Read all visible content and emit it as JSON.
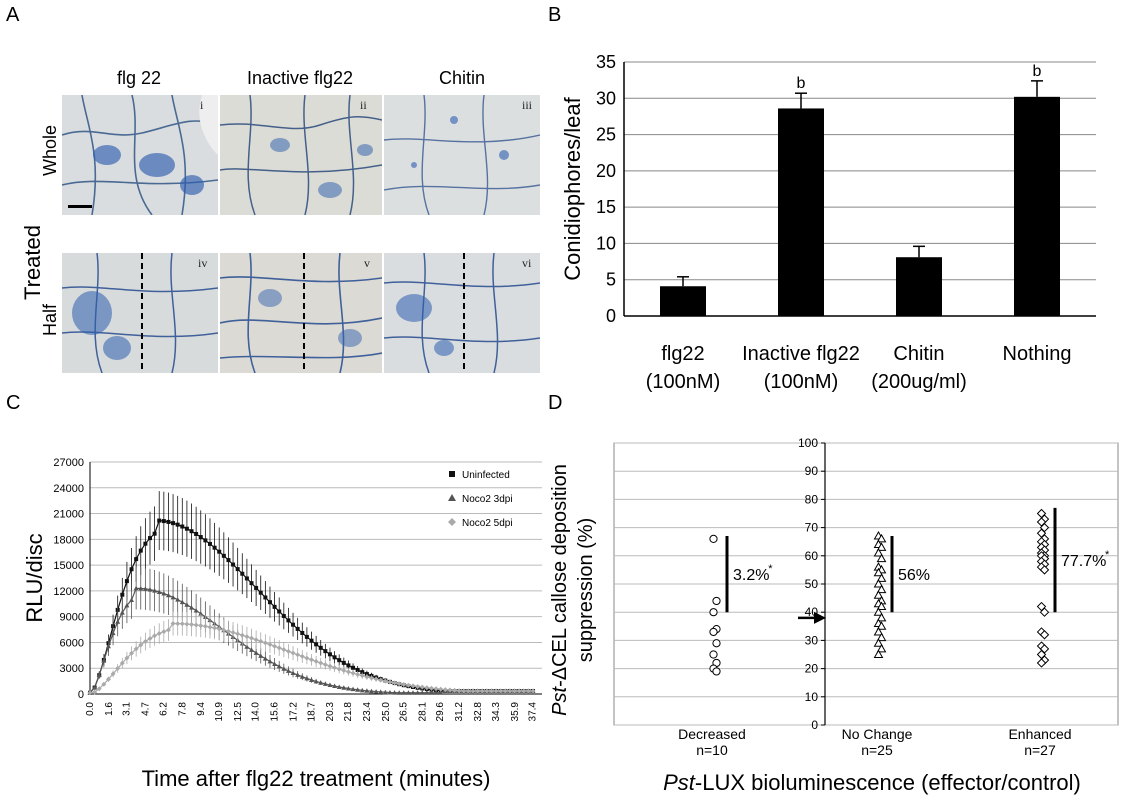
{
  "panel_a": {
    "label": "A",
    "row_group_label": "Treated",
    "rows": [
      {
        "label": "Whole",
        "images": [
          {
            "numeral": "i"
          },
          {
            "numeral": "ii"
          },
          {
            "numeral": "iii"
          }
        ]
      },
      {
        "label": "Half",
        "images": [
          {
            "numeral": "iv"
          },
          {
            "numeral": "v"
          },
          {
            "numeral": "vi"
          }
        ]
      }
    ],
    "columns": [
      "flg 22",
      "Inactive flg22",
      "Chitin"
    ]
  },
  "panel_b": {
    "label": "B",
    "chart_data": {
      "type": "bar",
      "ylabel": "Conidiophores/leaf",
      "ylim": [
        0,
        35
      ],
      "yticks": [
        0,
        5,
        10,
        15,
        20,
        25,
        30,
        35
      ],
      "categories": [
        "flg22\n(100nM)",
        "Inactive flg22\n(100nM)",
        "Chitin\n(200ug/ml)",
        "Nothing"
      ],
      "category_lines": [
        [
          "flg22",
          "(100nM)"
        ],
        [
          "Inactive flg22",
          "(100nM)"
        ],
        [
          "Chitin",
          "(200ug/ml)"
        ],
        [
          "Nothing",
          ""
        ]
      ],
      "values": [
        4.1,
        28.6,
        8.1,
        30.2
      ],
      "errors": [
        1.3,
        2.1,
        1.5,
        2.2
      ],
      "annotations": [
        "",
        "b",
        "",
        "b"
      ],
      "grid": true
    }
  },
  "panel_c": {
    "label": "C",
    "chart_data": {
      "type": "line",
      "xlabel": "Time after flg22 treatment (minutes)",
      "ylabel": "RLU/disc",
      "ylim": [
        0,
        27000
      ],
      "yticks": [
        0,
        3000,
        6000,
        9000,
        12000,
        15000,
        18000,
        21000,
        24000,
        27000
      ],
      "xticks": [
        "0.0",
        "1.6",
        "3.1",
        "4.7",
        "6.2",
        "7.8",
        "9.4",
        "10.9",
        "12.5",
        "14.0",
        "15.6",
        "17.2",
        "18.7",
        "20.3",
        "21.8",
        "23.4",
        "25.0",
        "26.5",
        "28.1",
        "29.6",
        "31.2",
        "32.8",
        "34.3",
        "35.9",
        "37.4"
      ],
      "grid": true,
      "legend_position": "top-right",
      "series": [
        {
          "name": "Uninfected",
          "color": "#111111",
          "marker": "square",
          "peak": 20200,
          "peak_time": 5.5,
          "err_frac": 0.17
        },
        {
          "name": "Noco2 3dpi",
          "color": "#555555",
          "marker": "triangle",
          "peak": 12300,
          "peak_time": 3.9,
          "err_frac": 0.2
        },
        {
          "name": "Noco2 5dpi",
          "color": "#aaaaaa",
          "marker": "diamond",
          "peak": 8200,
          "peak_time": 7.0,
          "err_frac": 0.17
        }
      ]
    }
  },
  "panel_d": {
    "label": "D",
    "chart_data": {
      "type": "scatter",
      "ylabel": "Pst-ΔCEL callose deposition suppression (%)",
      "ylabel_parts": [
        "Pst",
        "-ΔCEL callose deposition",
        "suppression (%)"
      ],
      "xlabel_parts": [
        "Pst",
        "-LUX bioluminescence (effector/control)"
      ],
      "ylim": [
        0,
        100
      ],
      "yticks": [
        0,
        10,
        20,
        30,
        40,
        50,
        60,
        70,
        80,
        90,
        100
      ],
      "groups": [
        {
          "name": "Decreased",
          "n_label": "n=10",
          "marker": "circle",
          "percent": "3.2%",
          "star": "*",
          "values": [
            66,
            44,
            40,
            34,
            33,
            29,
            25,
            22,
            20,
            19
          ],
          "bar": [
            40,
            67
          ]
        },
        {
          "name": "No Change",
          "n_label": "n=25",
          "marker": "triangle",
          "percent": "56%",
          "star": "",
          "values": [
            67,
            66,
            64,
            63,
            61,
            59,
            56,
            55,
            54,
            52,
            50,
            48,
            46,
            44,
            43,
            42,
            40,
            38,
            36,
            35,
            33,
            31,
            29,
            27,
            25
          ],
          "bar": [
            40,
            67
          ]
        },
        {
          "name": "Enhanced",
          "n_label": "n=27",
          "marker": "diamond",
          "percent": "77.7%",
          "star": "*",
          "values": [
            75,
            73,
            72,
            70,
            68,
            66,
            65,
            64,
            63,
            62,
            61,
            60,
            60,
            59,
            58,
            57,
            56,
            55,
            42,
            40,
            33,
            32,
            28,
            27,
            25,
            23,
            22
          ],
          "bar": [
            40,
            77
          ]
        }
      ],
      "arrow_at": 38
    }
  }
}
